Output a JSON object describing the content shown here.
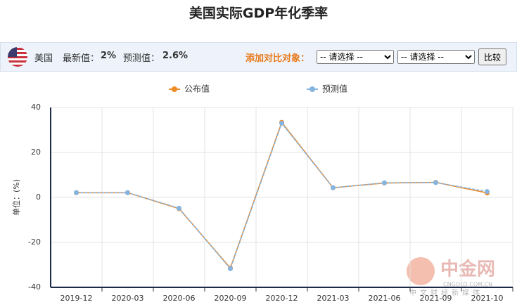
{
  "chart_data": {
    "type": "line",
    "title": "美国实际GDP年化季率",
    "ylabel": "单位：(%)",
    "categories": [
      "2019-12",
      "2020-03",
      "2020-06",
      "2020-09",
      "2020-12",
      "2021-03",
      "2021-06",
      "2021-09",
      "2021-10"
    ],
    "series": [
      {
        "name": "公布值",
        "color": "#f08a24",
        "values": [
          2.1,
          2.1,
          -5.0,
          -31.4,
          33.4,
          4.3,
          6.4,
          6.7,
          2.0
        ]
      },
      {
        "name": "预测值",
        "color": "#86b4e0",
        "values": [
          2.1,
          2.1,
          -4.8,
          -31.7,
          33.0,
          4.3,
          6.5,
          6.6,
          2.6
        ]
      }
    ],
    "ylim": [
      -40,
      40
    ],
    "yticks": [
      -40,
      -20,
      0,
      20,
      40
    ],
    "grid": true
  },
  "toolbar": {
    "country": "美国",
    "latest_label": "最新值：",
    "latest_value": "2%",
    "forecast_label": "预测值：",
    "forecast_value": "2.6%",
    "compare_label": "添加对比对象：",
    "selects": [
      "-- 请选择 --",
      "-- 请选择 --"
    ],
    "button": "比较"
  },
  "watermark": {
    "brand": "中金网",
    "slogan": "中文财经新媒体",
    "site": "CNGOLD.COM.CN"
  }
}
